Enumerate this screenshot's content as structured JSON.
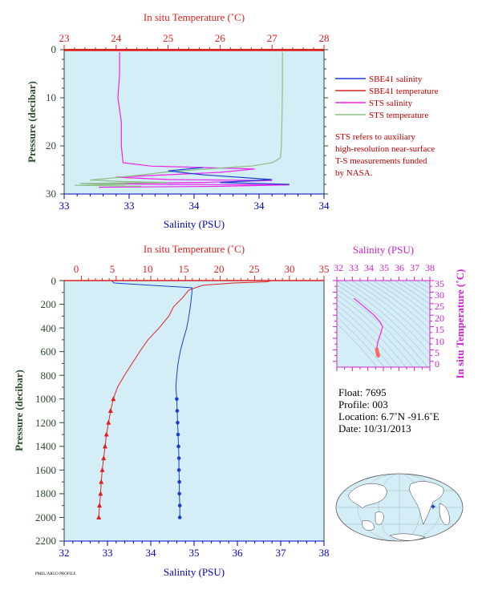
{
  "colors": {
    "panel_bg": "#d4eef8",
    "temp": "#e02020",
    "sal_axis": "#0000c0",
    "sbe_sal": "#1a3fd0",
    "sbe_temp": "#e02020",
    "sts_sal": "#ee22ee",
    "sts_temp": "#8cc084",
    "pressure_axis": "#2e4a2e",
    "inset_axis": "#cc22cc"
  },
  "chart_data": [
    {
      "type": "line",
      "id": "near_surface",
      "top_axis_label": "In situ Temperature (˚C)",
      "top_ticks": [
        "23",
        "24",
        "25",
        "26",
        "27",
        "28"
      ],
      "top_range": [
        23,
        28
      ],
      "bottom_axis_label": "Salinity (PSU)",
      "bottom_ticks": [
        "33",
        "33",
        "34",
        "34",
        "34"
      ],
      "bottom_range": [
        33,
        34.5
      ],
      "ylabel": "Pressure (decibar)",
      "y_ticks": [
        "0",
        "10",
        "20",
        "30"
      ],
      "ylim": [
        0,
        30
      ],
      "legend": [
        {
          "name": "SBE41 salinity",
          "color": "#1a3fd0"
        },
        {
          "name": "SBE41 temperature",
          "color": "#e02020"
        },
        {
          "name": "STS salinity",
          "color": "#ee22ee"
        },
        {
          "name": "STS temperature",
          "color": "#8cc084"
        }
      ],
      "note": [
        "STS refers to auxiliary",
        "high-resolution near-surface",
        "T-S measurements funded",
        "by NASA."
      ],
      "series": [
        {
          "name": "STS salinity",
          "axis": "bottom",
          "color": "#ee22ee",
          "points": [
            [
              33.32,
              0.5
            ],
            [
              33.32,
              5
            ],
            [
              33.31,
              10
            ],
            [
              33.33,
              15
            ],
            [
              33.33,
              20
            ],
            [
              33.34,
              23.5
            ],
            [
              33.5,
              24.2
            ],
            [
              33.8,
              24.5
            ],
            [
              34.1,
              24.8
            ],
            [
              33.9,
              25.5
            ],
            [
              33.3,
              26.5
            ],
            [
              33.6,
              27
            ],
            [
              34.2,
              27.2
            ],
            [
              33.8,
              27.6
            ],
            [
              33.1,
              27.8
            ],
            [
              33.6,
              28
            ],
            [
              34.3,
              28.1
            ],
            [
              33.9,
              28.4
            ],
            [
              33.2,
              28.6
            ]
          ]
        },
        {
          "name": "STS temperature",
          "axis": "top",
          "color": "#8cc084",
          "points": [
            [
              27.2,
              0.5
            ],
            [
              27.2,
              8
            ],
            [
              27.19,
              15
            ],
            [
              27.18,
              20
            ],
            [
              27.16,
              22.5
            ],
            [
              27.0,
              23.5
            ],
            [
              26.6,
              24.2
            ],
            [
              26.0,
              24.6
            ],
            [
              25.5,
              25
            ],
            [
              25.0,
              25.4
            ],
            [
              24.5,
              26
            ],
            [
              24.0,
              26.6
            ],
            [
              23.5,
              27.1
            ],
            [
              24.1,
              27.4
            ],
            [
              25.0,
              27.6
            ],
            [
              23.3,
              27.8
            ],
            [
              24.2,
              28
            ],
            [
              23.2,
              28.2
            ],
            [
              24.5,
              28.4
            ]
          ]
        },
        {
          "name": "SBE41 salinity",
          "axis": "bottom",
          "color": "#1a3fd0",
          "points": [
            [
              33.8,
              24.5
            ],
            [
              33.6,
              25.2
            ],
            [
              33.8,
              26
            ],
            [
              34.2,
              27
            ],
            [
              33.9,
              27.6
            ],
            [
              34.3,
              28
            ]
          ]
        },
        {
          "name": "SBE41 temperature",
          "axis": "top",
          "color": "#e02020",
          "points": [
            [
              23,
              0.2
            ],
            [
              28,
              0.2
            ]
          ]
        }
      ]
    },
    {
      "type": "line",
      "id": "full_profile",
      "top_axis_label": "In situ Temperature (˚C)",
      "top_ticks": [
        "0",
        "5",
        "10",
        "15",
        "20",
        "25",
        "30",
        "35"
      ],
      "top_range": [
        -2.5,
        35
      ],
      "bottom_axis_label": "Salinity (PSU)",
      "bottom_ticks": [
        "32",
        "33",
        "34",
        "35",
        "36",
        "37",
        "38"
      ],
      "bottom_range": [
        32,
        38
      ],
      "ylabel": "Pressure (decibar)",
      "y_ticks": [
        "0",
        "200",
        "400",
        "600",
        "800",
        "1000",
        "1200",
        "1400",
        "1600",
        "1800",
        "2000",
        "2200"
      ],
      "ylim": [
        0,
        2200
      ],
      "series": [
        {
          "name": "SBE41 temperature",
          "axis": "top",
          "color": "#e02020",
          "points": [
            [
              27.3,
              2
            ],
            [
              26.8,
              10
            ],
            [
              22,
              20
            ],
            [
              17.5,
              40
            ],
            [
              15.5,
              80
            ],
            [
              14.5,
              150
            ],
            [
              13.3,
              220
            ],
            [
              12.6,
              300
            ],
            [
              11.2,
              400
            ],
            [
              9.6,
              500
            ],
            [
              8.4,
              600
            ],
            [
              7.3,
              700
            ],
            [
              6.2,
              800
            ],
            [
              5.2,
              900
            ],
            [
              4.6,
              1000
            ],
            [
              4.2,
              1100
            ],
            [
              3.9,
              1200
            ],
            [
              3.6,
              1300
            ],
            [
              3.4,
              1400
            ],
            [
              3.2,
              1500
            ],
            [
              3.0,
              1600
            ],
            [
              2.85,
              1700
            ],
            [
              2.75,
              1800
            ],
            [
              2.6,
              1900
            ],
            [
              2.5,
              2000
            ]
          ]
        },
        {
          "name": "SBE41 salinity",
          "axis": "bottom",
          "color": "#1a3fd0",
          "points": [
            [
              33.1,
              2
            ],
            [
              33.15,
              20
            ],
            [
              34.0,
              40
            ],
            [
              34.95,
              60
            ],
            [
              34.95,
              100
            ],
            [
              34.92,
              200
            ],
            [
              34.88,
              300
            ],
            [
              34.83,
              400
            ],
            [
              34.75,
              500
            ],
            [
              34.68,
              600
            ],
            [
              34.63,
              700
            ],
            [
              34.6,
              800
            ],
            [
              34.58,
              900
            ],
            [
              34.6,
              1000
            ],
            [
              34.61,
              1100
            ],
            [
              34.62,
              1200
            ],
            [
              34.63,
              1300
            ],
            [
              34.64,
              1400
            ],
            [
              34.65,
              1500
            ],
            [
              34.65,
              1600
            ],
            [
              34.66,
              1700
            ],
            [
              34.66,
              1800
            ],
            [
              34.67,
              1900
            ],
            [
              34.67,
              2000
            ]
          ]
        }
      ],
      "marker_from_pressure": 1000
    },
    {
      "type": "line",
      "id": "ts_diagram",
      "top_axis_label": "Salinity (PSU)",
      "top_ticks": [
        "32",
        "33",
        "34",
        "35",
        "36",
        "37",
        "38"
      ],
      "top_range": [
        32,
        38
      ],
      "right_axis_label": "In situ Temperature (˚C)",
      "right_ticks": [
        "0",
        "5",
        "10",
        "15",
        "20",
        "25",
        "30",
        "35"
      ],
      "right_range": [
        -2.5,
        35
      ],
      "series": [
        {
          "name": "T-S",
          "color": "#ee22ee",
          "points": [
            [
              33.1,
              27.3
            ],
            [
              33.7,
              24
            ],
            [
              34.4,
              20
            ],
            [
              34.8,
              17
            ],
            [
              34.95,
              15
            ],
            [
              34.85,
              12.6
            ],
            [
              34.7,
              9.6
            ],
            [
              34.6,
              7.3
            ],
            [
              34.58,
              5.2
            ],
            [
              34.6,
              4.2
            ],
            [
              34.63,
              3.4
            ],
            [
              34.66,
              2.8
            ],
            [
              34.67,
              2.5
            ]
          ]
        }
      ]
    }
  ],
  "info": {
    "float": "Float:  7695",
    "profile": "Profile:  003",
    "location": "Location:  6.7˚N  -91.6˚E",
    "date": "Date:  10/31/2013"
  },
  "footer_text": "PMEL/ARGO PROFILE"
}
